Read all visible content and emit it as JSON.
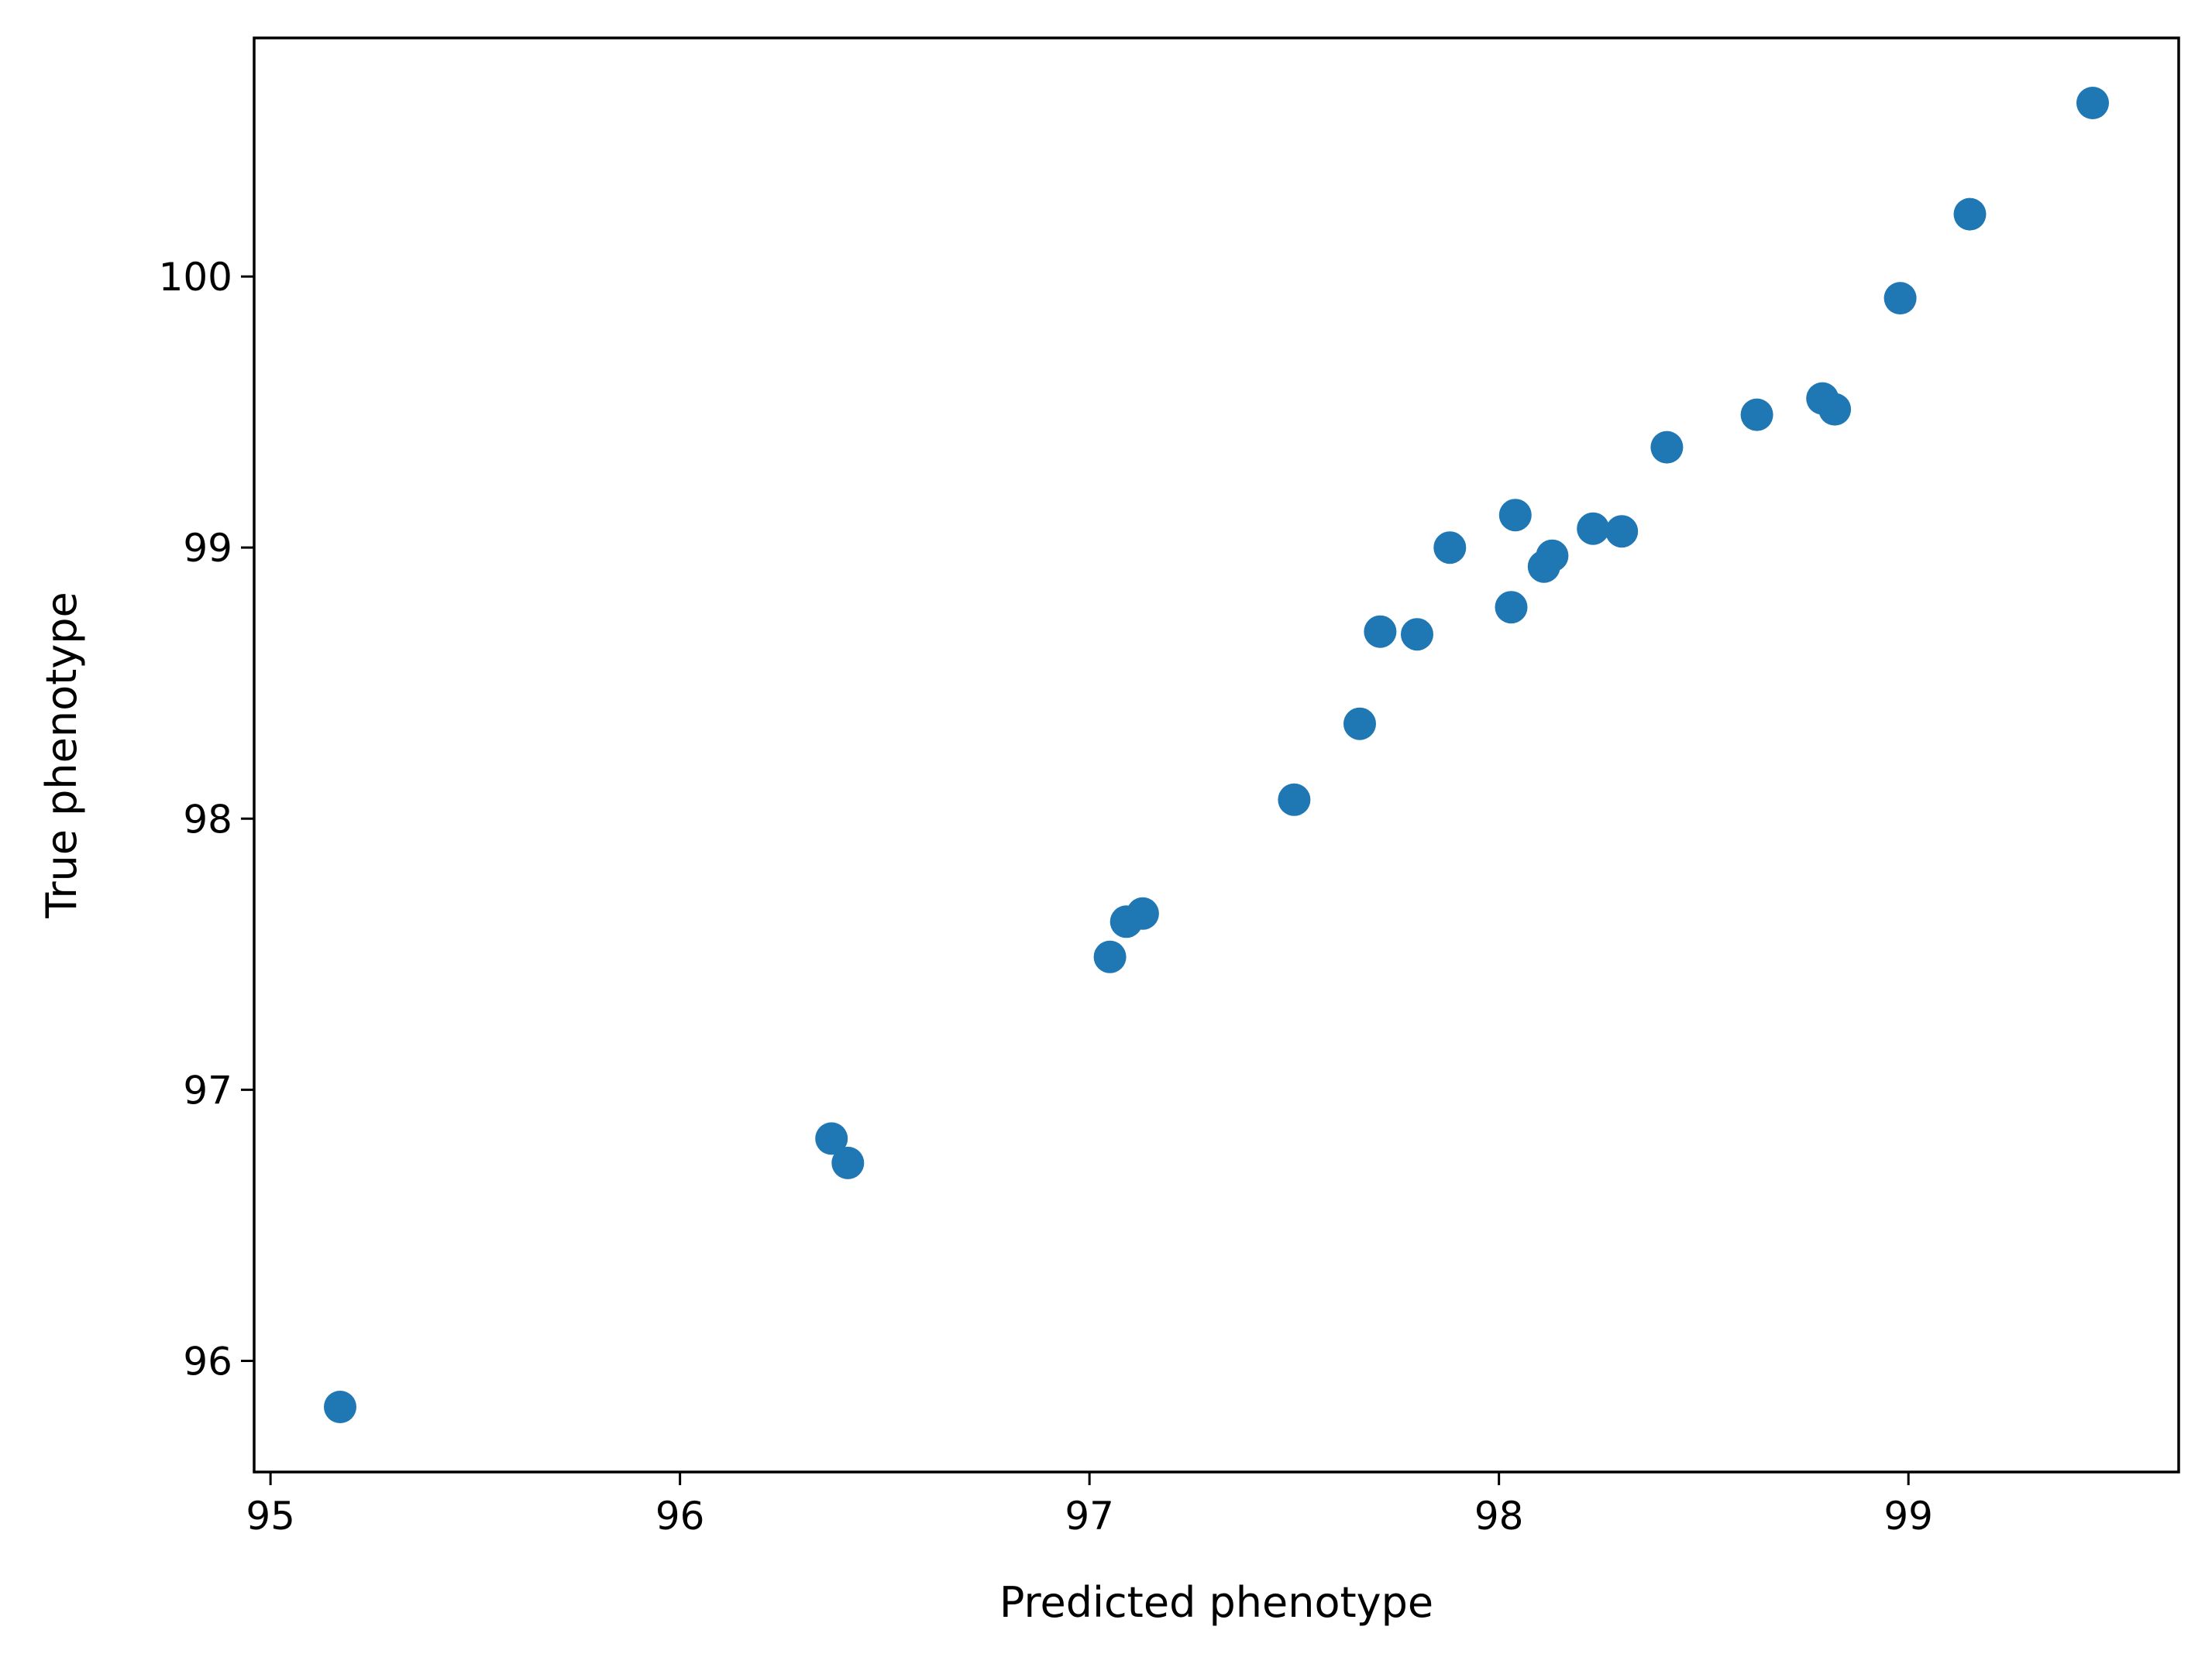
{
  "chart_data": {
    "type": "scatter",
    "title": "",
    "xlabel": "Predicted phenotype",
    "ylabel": "True phenotype",
    "xlim": [
      94.96,
      99.66
    ],
    "ylim": [
      95.59,
      100.88
    ],
    "xticks": [
      95,
      96,
      97,
      98,
      99
    ],
    "yticks": [
      96,
      97,
      98,
      99,
      100
    ],
    "grid": false,
    "legend": "none",
    "marker_color": "#1f77b4",
    "series": [
      {
        "points": [
          {
            "x": 95.17,
            "y": 95.83
          },
          {
            "x": 96.37,
            "y": 96.82
          },
          {
            "x": 96.41,
            "y": 96.73
          },
          {
            "x": 97.05,
            "y": 97.49
          },
          {
            "x": 97.09,
            "y": 97.62
          },
          {
            "x": 97.13,
            "y": 97.65
          },
          {
            "x": 97.5,
            "y": 98.07
          },
          {
            "x": 97.66,
            "y": 98.35
          },
          {
            "x": 97.71,
            "y": 98.69
          },
          {
            "x": 97.8,
            "y": 98.68
          },
          {
            "x": 97.88,
            "y": 99.0
          },
          {
            "x": 98.03,
            "y": 98.78
          },
          {
            "x": 98.04,
            "y": 99.12
          },
          {
            "x": 98.11,
            "y": 98.93
          },
          {
            "x": 98.13,
            "y": 98.97
          },
          {
            "x": 98.23,
            "y": 99.07
          },
          {
            "x": 98.3,
            "y": 99.06
          },
          {
            "x": 98.41,
            "y": 99.37
          },
          {
            "x": 98.63,
            "y": 99.49
          },
          {
            "x": 98.79,
            "y": 99.55
          },
          {
            "x": 98.82,
            "y": 99.51
          },
          {
            "x": 98.98,
            "y": 99.92
          },
          {
            "x": 99.15,
            "y": 100.23
          },
          {
            "x": 99.45,
            "y": 100.64
          }
        ]
      }
    ]
  }
}
